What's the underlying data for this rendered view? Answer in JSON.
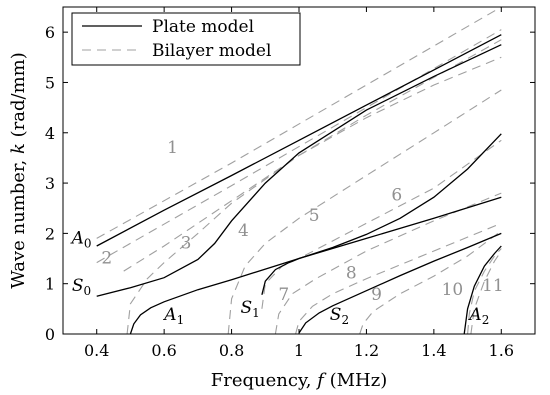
{
  "chart_data": {
    "type": "line",
    "xlabel": "Frequency, f (MHz)",
    "ylabel": "Wave number, k (rad/mm)",
    "xlim": [
      0.3,
      1.7
    ],
    "ylim": [
      0,
      6.5
    ],
    "xticks": [
      0.4,
      0.6,
      0.8,
      1.0,
      1.2,
      1.4,
      1.6
    ],
    "xtick_labels": [
      "0.4",
      "0.6",
      "0.8",
      "1",
      "1.2",
      "1.4",
      "1.6"
    ],
    "yticks": [
      0,
      1,
      2,
      3,
      4,
      5,
      6
    ],
    "ytick_labels": [
      "0",
      "1",
      "2",
      "3",
      "4",
      "5",
      "6"
    ],
    "grid": false,
    "legend": {
      "placement": "top-left",
      "entries": [
        {
          "label": "Plate model",
          "style": "solid",
          "color": "#000000"
        },
        {
          "label": "Bilayer model",
          "style": "dashed",
          "color": "#a0a0a0"
        }
      ]
    },
    "plate_series": [
      {
        "name": "A0",
        "x": [
          0.4,
          0.6,
          0.8,
          1.0,
          1.2,
          1.4,
          1.6
        ],
        "y": [
          1.75,
          2.46,
          3.15,
          3.85,
          4.55,
          5.25,
          5.95
        ]
      },
      {
        "name": "S0",
        "x": [
          0.4,
          0.5,
          0.6,
          0.7,
          0.75,
          0.8,
          0.9,
          1.0,
          1.2,
          1.4,
          1.6
        ],
        "y": [
          0.75,
          0.92,
          1.12,
          1.48,
          1.8,
          2.25,
          3.0,
          3.6,
          4.45,
          5.12,
          5.75
        ]
      },
      {
        "name": "A1",
        "x": [
          0.5,
          0.51,
          0.53,
          0.56,
          0.6,
          0.7,
          0.8,
          1.0,
          1.2,
          1.4,
          1.6
        ],
        "y": [
          0.0,
          0.2,
          0.38,
          0.52,
          0.64,
          0.88,
          1.08,
          1.5,
          1.9,
          2.3,
          2.72
        ]
      },
      {
        "name": "S1",
        "x": [
          0.89,
          0.9,
          0.93,
          0.97,
          1.0,
          1.1,
          1.2,
          1.3,
          1.4,
          1.5,
          1.6
        ],
        "y": [
          0.78,
          1.05,
          1.28,
          1.42,
          1.5,
          1.72,
          1.98,
          2.3,
          2.72,
          3.28,
          3.98
        ]
      },
      {
        "name": "S2",
        "x": [
          1.0,
          1.02,
          1.06,
          1.1,
          1.2,
          1.3,
          1.4,
          1.5,
          1.6
        ],
        "y": [
          0.02,
          0.22,
          0.42,
          0.56,
          0.86,
          1.16,
          1.45,
          1.72,
          2.0
        ]
      },
      {
        "name": "A2",
        "x": [
          1.49,
          1.5,
          1.52,
          1.55,
          1.58,
          1.6
        ],
        "y": [
          0.0,
          0.5,
          0.95,
          1.35,
          1.6,
          1.75
        ]
      }
    ],
    "bilayer_series": [
      {
        "name": "1",
        "x": [
          0.4,
          0.8,
          1.2,
          1.6
        ],
        "y": [
          1.9,
          3.4,
          4.95,
          6.5
        ]
      },
      {
        "name": "2",
        "x": [
          0.4,
          0.8,
          1.2,
          1.6
        ],
        "y": [
          1.42,
          2.95,
          4.5,
          6.05
        ]
      },
      {
        "name": "3",
        "x": [
          0.48,
          0.6,
          0.8,
          1.0,
          1.2,
          1.4,
          1.6
        ],
        "y": [
          1.25,
          1.75,
          2.65,
          3.55,
          4.35,
          5.1,
          5.85
        ]
      },
      {
        "name": "4",
        "x": [
          0.49,
          0.5,
          0.55,
          0.6,
          0.7,
          0.8,
          1.0,
          1.2,
          1.4,
          1.6
        ],
        "y": [
          0.0,
          0.6,
          1.1,
          1.42,
          2.0,
          2.6,
          3.55,
          4.3,
          4.95,
          5.5
        ]
      },
      {
        "name": "5",
        "x": [
          0.79,
          0.8,
          0.84,
          0.9,
          1.0,
          1.2,
          1.4,
          1.6
        ],
        "y": [
          0.0,
          0.7,
          1.35,
          1.8,
          2.3,
          3.15,
          4.0,
          4.85
        ]
      },
      {
        "name": "6",
        "x": [
          0.89,
          0.9,
          0.95,
          1.0,
          1.2,
          1.4,
          1.6
        ],
        "y": [
          0.5,
          1.0,
          1.35,
          1.5,
          2.2,
          2.9,
          3.85
        ]
      },
      {
        "name": "7",
        "x": [
          0.93,
          0.94,
          0.98,
          1.05,
          1.2,
          1.4,
          1.6
        ],
        "y": [
          0.0,
          0.4,
          0.8,
          1.1,
          1.65,
          2.25,
          2.8
        ]
      },
      {
        "name": "8",
        "x": [
          0.99,
          1.0,
          1.04,
          1.1,
          1.2,
          1.4,
          1.6
        ],
        "y": [
          0.0,
          0.25,
          0.55,
          0.8,
          1.1,
          1.65,
          2.2
        ]
      },
      {
        "name": "9",
        "x": [
          1.18,
          1.19,
          1.22,
          1.3,
          1.4,
          1.5,
          1.6
        ],
        "y": [
          0.0,
          0.2,
          0.45,
          0.8,
          1.15,
          1.55,
          2.05
        ]
      },
      {
        "name": "10",
        "x": [
          1.5,
          1.505,
          1.52,
          1.55,
          1.58,
          1.6
        ],
        "y": [
          0.0,
          0.4,
          0.85,
          1.25,
          1.55,
          1.7
        ]
      },
      {
        "name": "11",
        "x": [
          1.51,
          1.52,
          1.55,
          1.58,
          1.6
        ],
        "y": [
          0.0,
          0.5,
          1.05,
          1.45,
          1.65
        ]
      }
    ],
    "annotations": [
      {
        "text": "A",
        "sub": "0",
        "x": 0.355,
        "y": 1.8,
        "color": "#000000"
      },
      {
        "text": "S",
        "sub": "0",
        "x": 0.355,
        "y": 0.85,
        "color": "#000000"
      },
      {
        "text": "A",
        "sub": "1",
        "x": 0.63,
        "y": 0.28,
        "color": "#000000"
      },
      {
        "text": "S",
        "sub": "1",
        "x": 0.855,
        "y": 0.42,
        "color": "#000000"
      },
      {
        "text": "S",
        "sub": "2",
        "x": 1.12,
        "y": 0.28,
        "color": "#000000"
      },
      {
        "text": "A",
        "sub": "2",
        "x": 1.535,
        "y": 0.28,
        "color": "#000000"
      },
      {
        "text": "1",
        "sub": "",
        "x": 0.625,
        "y": 3.6,
        "color": "#909090"
      },
      {
        "text": "2",
        "sub": "",
        "x": 0.43,
        "y": 1.4,
        "color": "#909090"
      },
      {
        "text": "3",
        "sub": "",
        "x": 0.665,
        "y": 1.7,
        "color": "#909090"
      },
      {
        "text": "4",
        "sub": "",
        "x": 0.835,
        "y": 1.95,
        "color": "#909090"
      },
      {
        "text": "5",
        "sub": "",
        "x": 1.045,
        "y": 2.25,
        "color": "#909090"
      },
      {
        "text": "6",
        "sub": "",
        "x": 1.29,
        "y": 2.65,
        "color": "#909090"
      },
      {
        "text": "7",
        "sub": "",
        "x": 0.955,
        "y": 0.68,
        "color": "#909090"
      },
      {
        "text": "8",
        "sub": "",
        "x": 1.155,
        "y": 1.1,
        "color": "#909090"
      },
      {
        "text": "9",
        "sub": "",
        "x": 1.23,
        "y": 0.68,
        "color": "#909090"
      },
      {
        "text": "10",
        "sub": "",
        "x": 1.455,
        "y": 0.78,
        "color": "#909090"
      },
      {
        "text": "11",
        "sub": "",
        "x": 1.575,
        "y": 0.85,
        "color": "#909090"
      }
    ],
    "colors": {
      "plate": "#000000",
      "bilayer": "#a0a0a0"
    }
  }
}
